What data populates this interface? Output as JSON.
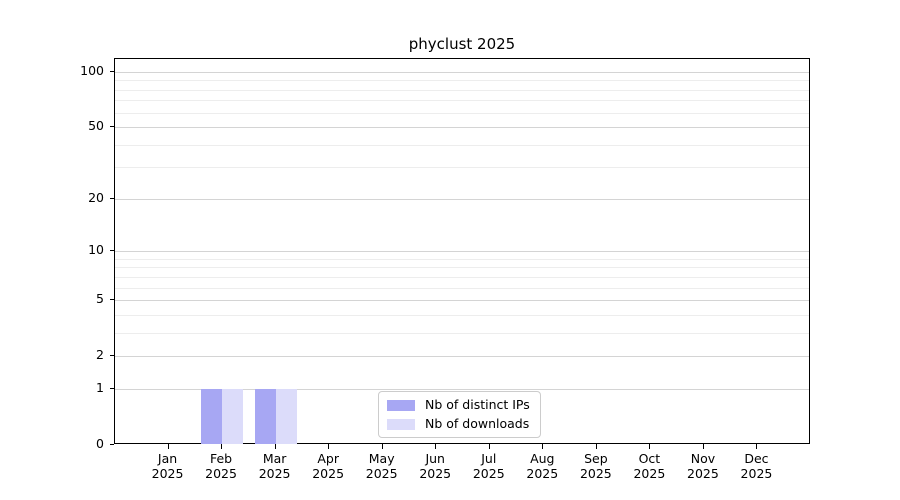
{
  "chart_data": {
    "type": "bar",
    "title": "phyclust 2025",
    "categories": [
      "Jan",
      "Feb",
      "Mar",
      "Apr",
      "May",
      "Jun",
      "Jul",
      "Aug",
      "Sep",
      "Oct",
      "Nov",
      "Dec"
    ],
    "year_label": "2025",
    "series": [
      {
        "name": "Nb of distinct IPs",
        "color": "#a7a7f3",
        "values": [
          0,
          1,
          1,
          0,
          0,
          0,
          0,
          0,
          0,
          0,
          0,
          0
        ]
      },
      {
        "name": "Nb of downloads",
        "color": "#dcdcfa",
        "values": [
          0,
          1,
          1,
          0,
          0,
          0,
          0,
          0,
          0,
          0,
          0,
          0
        ]
      }
    ],
    "yscale": "log1p",
    "yticks": [
      0,
      1,
      2,
      5,
      10,
      20,
      50,
      100
    ],
    "minor_gridlines": [
      3,
      4,
      6,
      7,
      8,
      9,
      30,
      40,
      60,
      70,
      80,
      90
    ],
    "ylim": [
      0,
      117
    ],
    "xlabel": "",
    "ylabel": "",
    "grid": true,
    "legend_position": "lower center"
  },
  "colors": {
    "background": "#ffffff",
    "axis": "#000000",
    "major_grid": "#d4d4d4",
    "minor_grid": "#ededed",
    "legend_border": "#cccccc",
    "text": "#000000"
  }
}
